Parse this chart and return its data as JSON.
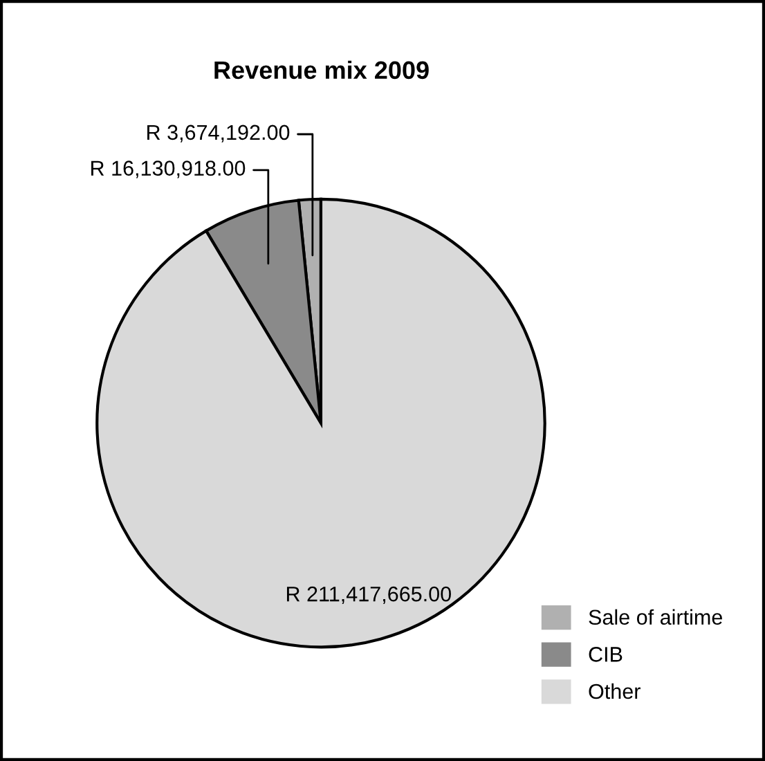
{
  "chart_data": {
    "type": "pie",
    "title": "Revenue mix 2009",
    "categories": [
      "Sale of airtime",
      "CIB",
      "Other"
    ],
    "values": [
      3674192.0,
      16130918.0,
      211417665.0
    ],
    "colors": [
      "#b0b0b0",
      "#8a8a8a",
      "#d9d9d9"
    ],
    "value_labels": [
      "R 3,674,192.00",
      "R 16,130,918.00",
      "R 211,417,665.00"
    ],
    "legend": "bottom right"
  }
}
